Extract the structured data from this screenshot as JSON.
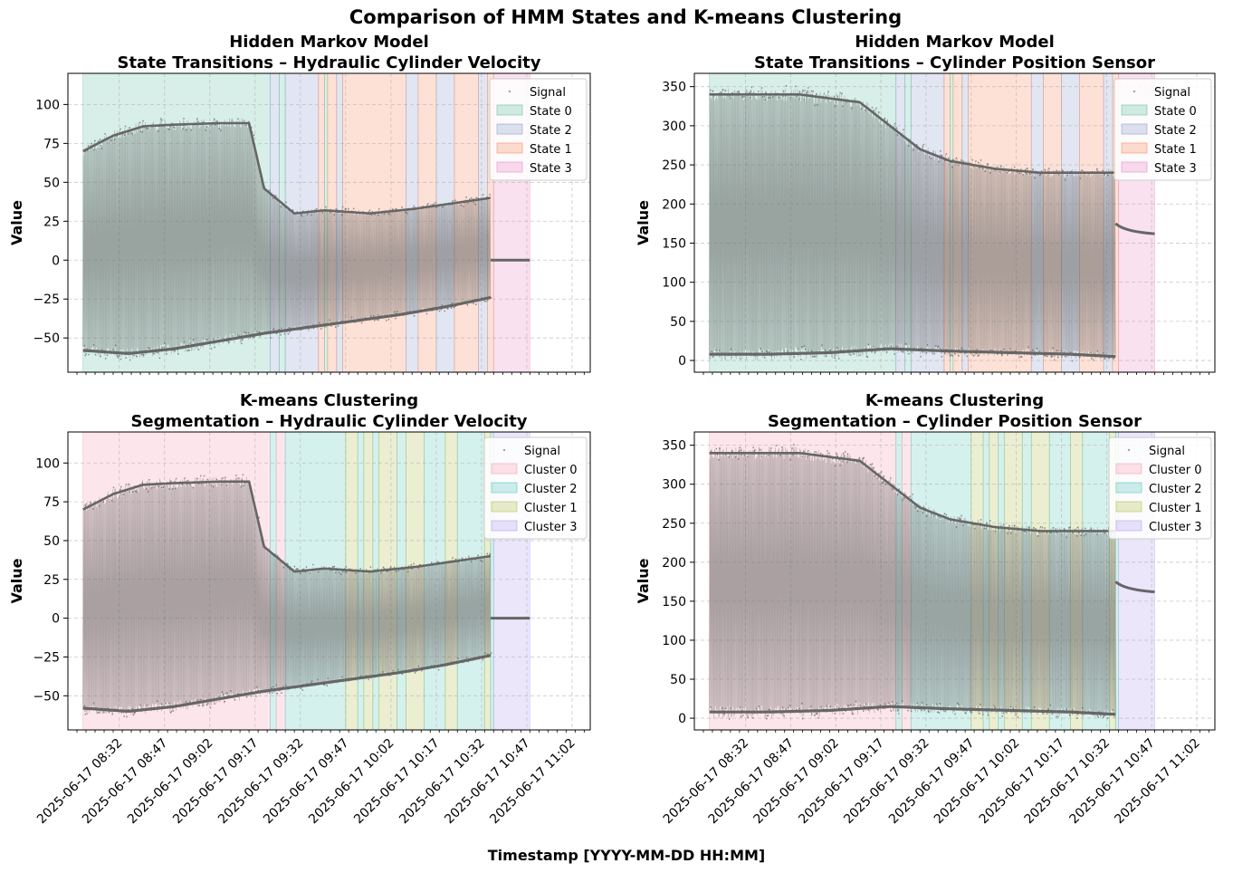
{
  "figure": {
    "suptitle": "Comparison of HMM States and K-means Clustering",
    "xlabel": "Timestamp [YYYY-MM-DD HH:MM]"
  },
  "x_tick_labels": [
    "2025-06-17 08:32",
    "2025-06-17 08:47",
    "2025-06-17 09:02",
    "2025-06-17 09:17",
    "2025-06-17 09:32",
    "2025-06-17 09:47",
    "2025-06-17 10:02",
    "2025-06-17 10:17",
    "2025-06-17 10:32",
    "2025-06-17 10:47",
    "2025-06-17 11:02"
  ],
  "colors": {
    "State 0": "#66c2a5",
    "State 2": "#8da0cb",
    "State 1": "#fc8d62",
    "State 3": "#e78ac3",
    "Cluster 0": "#f8a0b0",
    "Cluster 2": "#5cc8be",
    "Cluster 1": "#b5bf50",
    "Cluster 3": "#b4a0f0",
    "signal": "#666666"
  },
  "chart_data": [
    {
      "type": "scatter",
      "title": "Hidden Markov Model\nState Transitions – Hydraulic Cylinder Velocity",
      "ylabel": "Value",
      "xlim": [
        "2025-06-17 08:15",
        "2025-06-17 11:08"
      ],
      "ylim": [
        -72,
        120
      ],
      "yticks": [
        -50,
        -25,
        0,
        25,
        50,
        75,
        100
      ],
      "legend": [
        "Signal",
        "State 0",
        "State 2",
        "State 1",
        "State 3"
      ],
      "legend_position": "top-right",
      "grid": true,
      "segments": [
        {
          "start": "2025-06-17 08:20",
          "end": "2025-06-17 09:22",
          "label": "State 0"
        },
        {
          "start": "2025-06-17 09:22",
          "end": "2025-06-17 09:25",
          "label": "State 2"
        },
        {
          "start": "2025-06-17 09:25",
          "end": "2025-06-17 09:27",
          "label": "State 0"
        },
        {
          "start": "2025-06-17 09:27",
          "end": "2025-06-17 09:38",
          "label": "State 2"
        },
        {
          "start": "2025-06-17 09:38",
          "end": "2025-06-17 09:40",
          "label": "State 1"
        },
        {
          "start": "2025-06-17 09:40",
          "end": "2025-06-17 09:41",
          "label": "State 0"
        },
        {
          "start": "2025-06-17 09:41",
          "end": "2025-06-17 09:44",
          "label": "State 1"
        },
        {
          "start": "2025-06-17 09:44",
          "end": "2025-06-17 09:46",
          "label": "State 2"
        },
        {
          "start": "2025-06-17 09:46",
          "end": "2025-06-17 10:07",
          "label": "State 1"
        },
        {
          "start": "2025-06-17 10:07",
          "end": "2025-06-17 10:11",
          "label": "State 2"
        },
        {
          "start": "2025-06-17 10:11",
          "end": "2025-06-17 10:17",
          "label": "State 1"
        },
        {
          "start": "2025-06-17 10:17",
          "end": "2025-06-17 10:23",
          "label": "State 2"
        },
        {
          "start": "2025-06-17 10:23",
          "end": "2025-06-17 10:31",
          "label": "State 1"
        },
        {
          "start": "2025-06-17 10:31",
          "end": "2025-06-17 10:34",
          "label": "State 2"
        },
        {
          "start": "2025-06-17 10:34",
          "end": "2025-06-17 10:36",
          "label": "State 1"
        },
        {
          "start": "2025-06-17 10:36",
          "end": "2025-06-17 10:48",
          "label": "State 3"
        }
      ],
      "signal": {
        "start": "2025-06-17 08:20",
        "end": "2025-06-17 10:35",
        "lower_envelope": [
          [
            0,
            -58
          ],
          [
            15,
            -60
          ],
          [
            30,
            -57
          ],
          [
            45,
            -52
          ],
          [
            60,
            -47
          ],
          [
            75,
            -43
          ],
          [
            90,
            -39
          ],
          [
            105,
            -35
          ],
          [
            120,
            -30
          ],
          [
            135,
            -24
          ]
        ],
        "upper_envelope": [
          [
            0,
            70
          ],
          [
            10,
            80
          ],
          [
            20,
            86
          ],
          [
            30,
            87
          ],
          [
            45,
            88
          ],
          [
            55,
            88
          ],
          [
            60,
            46
          ],
          [
            70,
            30
          ],
          [
            80,
            32
          ],
          [
            95,
            30
          ],
          [
            110,
            33
          ],
          [
            135,
            40
          ]
        ],
        "after": {
          "start": "2025-06-17 10:35",
          "end": "2025-06-17 10:48",
          "value": 0
        }
      }
    },
    {
      "type": "scatter",
      "title": "Hidden Markov Model\nState Transitions – Cylinder Position Sensor",
      "ylabel": "Value",
      "xlim": [
        "2025-06-17 08:15",
        "2025-06-17 11:08"
      ],
      "ylim": [
        -15,
        367
      ],
      "yticks": [
        0,
        50,
        100,
        150,
        200,
        250,
        300,
        350
      ],
      "legend": [
        "Signal",
        "State 0",
        "State 2",
        "State 1",
        "State 3"
      ],
      "legend_position": "top-right",
      "grid": true,
      "segments": [
        {
          "start": "2025-06-17 08:20",
          "end": "2025-06-17 09:22",
          "label": "State 0"
        },
        {
          "start": "2025-06-17 09:22",
          "end": "2025-06-17 09:25",
          "label": "State 2"
        },
        {
          "start": "2025-06-17 09:25",
          "end": "2025-06-17 09:27",
          "label": "State 0"
        },
        {
          "start": "2025-06-17 09:27",
          "end": "2025-06-17 09:38",
          "label": "State 2"
        },
        {
          "start": "2025-06-17 09:38",
          "end": "2025-06-17 09:40",
          "label": "State 1"
        },
        {
          "start": "2025-06-17 09:40",
          "end": "2025-06-17 09:41",
          "label": "State 0"
        },
        {
          "start": "2025-06-17 09:41",
          "end": "2025-06-17 09:44",
          "label": "State 1"
        },
        {
          "start": "2025-06-17 09:44",
          "end": "2025-06-17 09:46",
          "label": "State 2"
        },
        {
          "start": "2025-06-17 09:46",
          "end": "2025-06-17 10:07",
          "label": "State 1"
        },
        {
          "start": "2025-06-17 10:07",
          "end": "2025-06-17 10:11",
          "label": "State 2"
        },
        {
          "start": "2025-06-17 10:11",
          "end": "2025-06-17 10:17",
          "label": "State 1"
        },
        {
          "start": "2025-06-17 10:17",
          "end": "2025-06-17 10:23",
          "label": "State 2"
        },
        {
          "start": "2025-06-17 10:23",
          "end": "2025-06-17 10:31",
          "label": "State 1"
        },
        {
          "start": "2025-06-17 10:31",
          "end": "2025-06-17 10:34",
          "label": "State 2"
        },
        {
          "start": "2025-06-17 10:34",
          "end": "2025-06-17 10:36",
          "label": "State 1"
        },
        {
          "start": "2025-06-17 10:36",
          "end": "2025-06-17 10:48",
          "label": "State 3"
        }
      ],
      "signal": {
        "start": "2025-06-17 08:20",
        "end": "2025-06-17 10:35",
        "lower_envelope": [
          [
            0,
            8
          ],
          [
            20,
            8
          ],
          [
            40,
            10
          ],
          [
            60,
            15
          ],
          [
            80,
            12
          ],
          [
            100,
            10
          ],
          [
            120,
            8
          ],
          [
            135,
            5
          ]
        ],
        "upper_envelope": [
          [
            0,
            340
          ],
          [
            30,
            340
          ],
          [
            50,
            330
          ],
          [
            60,
            300
          ],
          [
            70,
            270
          ],
          [
            80,
            255
          ],
          [
            95,
            245
          ],
          [
            110,
            240
          ],
          [
            135,
            240
          ]
        ],
        "after": {
          "start": "2025-06-17 10:35",
          "end": "2025-06-17 10:48",
          "value_start": 175,
          "value_end": 162
        }
      }
    },
    {
      "type": "scatter",
      "title": "K-means Clustering\nSegmentation – Hydraulic Cylinder Velocity",
      "ylabel": "Value",
      "xlim": [
        "2025-06-17 08:15",
        "2025-06-17 11:08"
      ],
      "ylim": [
        -72,
        120
      ],
      "yticks": [
        -50,
        -25,
        0,
        25,
        50,
        75,
        100
      ],
      "legend": [
        "Signal",
        "Cluster 0",
        "Cluster 2",
        "Cluster 1",
        "Cluster 3"
      ],
      "legend_position": "top-right",
      "grid": true,
      "segments": [
        {
          "start": "2025-06-17 08:20",
          "end": "2025-06-17 09:22",
          "label": "Cluster 0"
        },
        {
          "start": "2025-06-17 09:22",
          "end": "2025-06-17 09:24",
          "label": "Cluster 2"
        },
        {
          "start": "2025-06-17 09:24",
          "end": "2025-06-17 09:27",
          "label": "Cluster 0"
        },
        {
          "start": "2025-06-17 09:27",
          "end": "2025-06-17 09:47",
          "label": "Cluster 2"
        },
        {
          "start": "2025-06-17 09:47",
          "end": "2025-06-17 09:51",
          "label": "Cluster 1"
        },
        {
          "start": "2025-06-17 09:51",
          "end": "2025-06-17 09:53",
          "label": "Cluster 2"
        },
        {
          "start": "2025-06-17 09:53",
          "end": "2025-06-17 09:56",
          "label": "Cluster 1"
        },
        {
          "start": "2025-06-17 09:56",
          "end": "2025-06-17 09:58",
          "label": "Cluster 2"
        },
        {
          "start": "2025-06-17 09:58",
          "end": "2025-06-17 10:04",
          "label": "Cluster 1"
        },
        {
          "start": "2025-06-17 10:04",
          "end": "2025-06-17 10:07",
          "label": "Cluster 2"
        },
        {
          "start": "2025-06-17 10:07",
          "end": "2025-06-17 10:13",
          "label": "Cluster 1"
        },
        {
          "start": "2025-06-17 10:13",
          "end": "2025-06-17 10:20",
          "label": "Cluster 2"
        },
        {
          "start": "2025-06-17 10:20",
          "end": "2025-06-17 10:24",
          "label": "Cluster 1"
        },
        {
          "start": "2025-06-17 10:24",
          "end": "2025-06-17 10:33",
          "label": "Cluster 2"
        },
        {
          "start": "2025-06-17 10:33",
          "end": "2025-06-17 10:35",
          "label": "Cluster 1"
        },
        {
          "start": "2025-06-17 10:35",
          "end": "2025-06-17 10:36",
          "label": "Cluster 2"
        },
        {
          "start": "2025-06-17 10:36",
          "end": "2025-06-17 10:48",
          "label": "Cluster 3"
        }
      ],
      "signal": {
        "start": "2025-06-17 08:20",
        "end": "2025-06-17 10:35",
        "lower_envelope": [
          [
            0,
            -58
          ],
          [
            15,
            -60
          ],
          [
            30,
            -57
          ],
          [
            45,
            -52
          ],
          [
            60,
            -47
          ],
          [
            75,
            -43
          ],
          [
            90,
            -39
          ],
          [
            105,
            -35
          ],
          [
            120,
            -30
          ],
          [
            135,
            -24
          ]
        ],
        "upper_envelope": [
          [
            0,
            70
          ],
          [
            10,
            80
          ],
          [
            20,
            86
          ],
          [
            30,
            87
          ],
          [
            45,
            88
          ],
          [
            55,
            88
          ],
          [
            60,
            46
          ],
          [
            70,
            30
          ],
          [
            80,
            32
          ],
          [
            95,
            30
          ],
          [
            110,
            33
          ],
          [
            135,
            40
          ]
        ],
        "after": {
          "start": "2025-06-17 10:35",
          "end": "2025-06-17 10:48",
          "value": 0
        }
      }
    },
    {
      "type": "scatter",
      "title": "K-means Clustering\nSegmentation – Cylinder Position Sensor",
      "ylabel": "Value",
      "xlim": [
        "2025-06-17 08:15",
        "2025-06-17 11:08"
      ],
      "ylim": [
        -15,
        367
      ],
      "yticks": [
        0,
        50,
        100,
        150,
        200,
        250,
        300,
        350
      ],
      "legend": [
        "Signal",
        "Cluster 0",
        "Cluster 2",
        "Cluster 1",
        "Cluster 3"
      ],
      "legend_position": "top-right",
      "grid": true,
      "segments": [
        {
          "start": "2025-06-17 08:20",
          "end": "2025-06-17 09:22",
          "label": "Cluster 0"
        },
        {
          "start": "2025-06-17 09:22",
          "end": "2025-06-17 09:24",
          "label": "Cluster 2"
        },
        {
          "start": "2025-06-17 09:24",
          "end": "2025-06-17 09:27",
          "label": "Cluster 0"
        },
        {
          "start": "2025-06-17 09:27",
          "end": "2025-06-17 09:47",
          "label": "Cluster 2"
        },
        {
          "start": "2025-06-17 09:47",
          "end": "2025-06-17 09:51",
          "label": "Cluster 1"
        },
        {
          "start": "2025-06-17 09:51",
          "end": "2025-06-17 09:53",
          "label": "Cluster 2"
        },
        {
          "start": "2025-06-17 09:53",
          "end": "2025-06-17 09:56",
          "label": "Cluster 1"
        },
        {
          "start": "2025-06-17 09:56",
          "end": "2025-06-17 09:58",
          "label": "Cluster 2"
        },
        {
          "start": "2025-06-17 09:58",
          "end": "2025-06-17 10:04",
          "label": "Cluster 1"
        },
        {
          "start": "2025-06-17 10:04",
          "end": "2025-06-17 10:07",
          "label": "Cluster 2"
        },
        {
          "start": "2025-06-17 10:07",
          "end": "2025-06-17 10:13",
          "label": "Cluster 1"
        },
        {
          "start": "2025-06-17 10:13",
          "end": "2025-06-17 10:20",
          "label": "Cluster 2"
        },
        {
          "start": "2025-06-17 10:20",
          "end": "2025-06-17 10:24",
          "label": "Cluster 1"
        },
        {
          "start": "2025-06-17 10:24",
          "end": "2025-06-17 10:33",
          "label": "Cluster 2"
        },
        {
          "start": "2025-06-17 10:33",
          "end": "2025-06-17 10:35",
          "label": "Cluster 1"
        },
        {
          "start": "2025-06-17 10:35",
          "end": "2025-06-17 10:36",
          "label": "Cluster 2"
        },
        {
          "start": "2025-06-17 10:36",
          "end": "2025-06-17 10:48",
          "label": "Cluster 3"
        }
      ],
      "signal": {
        "start": "2025-06-17 08:20",
        "end": "2025-06-17 10:35",
        "lower_envelope": [
          [
            0,
            8
          ],
          [
            20,
            8
          ],
          [
            40,
            10
          ],
          [
            60,
            15
          ],
          [
            80,
            12
          ],
          [
            100,
            10
          ],
          [
            120,
            8
          ],
          [
            135,
            5
          ]
        ],
        "upper_envelope": [
          [
            0,
            340
          ],
          [
            30,
            340
          ],
          [
            50,
            330
          ],
          [
            60,
            300
          ],
          [
            70,
            270
          ],
          [
            80,
            255
          ],
          [
            95,
            245
          ],
          [
            110,
            240
          ],
          [
            135,
            240
          ]
        ],
        "after": {
          "start": "2025-06-17 10:35",
          "end": "2025-06-17 10:48",
          "value_start": 175,
          "value_end": 162
        }
      }
    }
  ]
}
